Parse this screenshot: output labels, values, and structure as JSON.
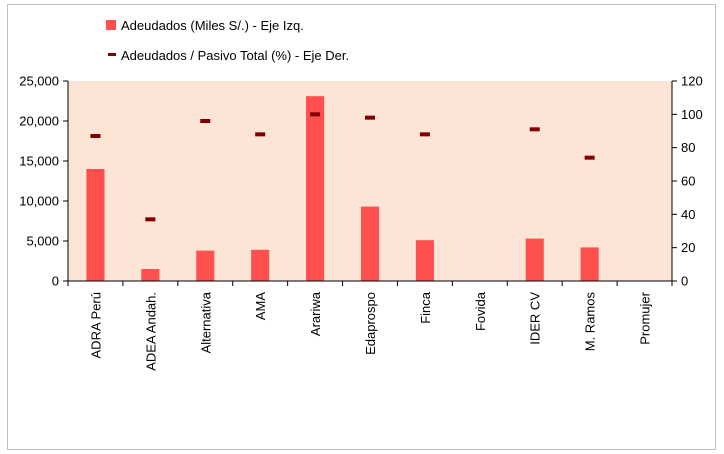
{
  "chart_data": {
    "type": "bar",
    "categories": [
      "ADRA Perú",
      "ADEA Andah.",
      "Alternativa",
      "AMA",
      "Arariwa",
      "Edaprospo",
      "Finca",
      "Fovida",
      "IDER CV",
      "M. Ramos",
      "Promujer"
    ],
    "series": [
      {
        "name": "Adeudados (Miles S/.) - Eje Izq.",
        "type": "bar",
        "axis": "left",
        "color": "#ff5050",
        "values": [
          14000,
          1500,
          3800,
          3900,
          23100,
          9300,
          5100,
          0,
          5300,
          4200,
          0
        ]
      },
      {
        "name": "Adeudados / Pasivo Total (%) - Eje Der.",
        "type": "marker",
        "axis": "right",
        "color": "#800000",
        "values": [
          87,
          37,
          96,
          88,
          100,
          98,
          88,
          null,
          91,
          74,
          null
        ]
      }
    ],
    "y_left": {
      "ticks": [
        "0",
        "5,000",
        "10,000",
        "15,000",
        "20,000",
        "25,000"
      ],
      "range": [
        0,
        25000
      ]
    },
    "y_right": {
      "ticks": [
        "0",
        "20",
        "40",
        "60",
        "80",
        "100",
        "120"
      ],
      "range": [
        0,
        120
      ]
    },
    "plot_background": "#fce4d6",
    "legend_position": "top-center",
    "grid": false
  }
}
